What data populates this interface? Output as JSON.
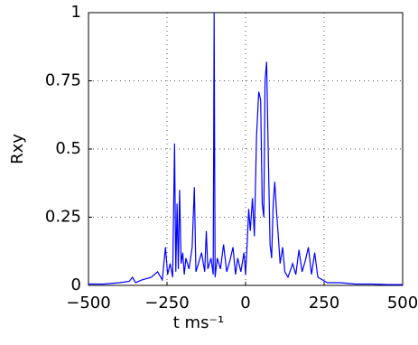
{
  "chart_data": {
    "type": "line",
    "xlabel": "t  ms⁻¹",
    "ylabel": "Rxy",
    "xlim": [
      -500,
      500
    ],
    "ylim": [
      0,
      1
    ],
    "xticks": [
      {
        "value": -500,
        "label": "−500"
      },
      {
        "value": -250,
        "label": "−250"
      },
      0,
      250,
      500
    ],
    "yticks": [
      0,
      0.25,
      0.5,
      0.75,
      1
    ],
    "grid": true,
    "series": [
      {
        "color": "#0000ff",
        "x": [
          -500,
          -450,
          -400,
          -370,
          -360,
          -350,
          -330,
          -300,
          -280,
          -265,
          -255,
          -248,
          -240,
          -232,
          -226,
          -222,
          -218,
          -214,
          -210,
          -205,
          -200,
          -195,
          -190,
          -180,
          -170,
          -163,
          -158,
          -150,
          -140,
          -130,
          -125,
          -120,
          -110,
          -103,
          -100,
          -97,
          -90,
          -80,
          -70,
          -60,
          -50,
          -40,
          -32,
          -25,
          -15,
          -5,
          0,
          5,
          10,
          15,
          22,
          28,
          35,
          42,
          48,
          53,
          58,
          62,
          67,
          72,
          78,
          83,
          88,
          93,
          98,
          103,
          110,
          118,
          125,
          135,
          150,
          160,
          170,
          180,
          190,
          200,
          210,
          220,
          230,
          245,
          260,
          300,
          350,
          400,
          450,
          500
        ],
        "values": [
          0.005,
          0.005,
          0.01,
          0.015,
          0.03,
          0.01,
          0.02,
          0.03,
          0.05,
          0.02,
          0.14,
          0.04,
          0.08,
          0.03,
          0.52,
          0.05,
          0.3,
          0.06,
          0.35,
          0.08,
          0.12,
          0.04,
          0.1,
          0.06,
          0.14,
          0.36,
          0.05,
          0.08,
          0.12,
          0.05,
          0.2,
          0.06,
          0.1,
          0.04,
          1.0,
          0.03,
          0.1,
          0.06,
          0.15,
          0.05,
          0.09,
          0.14,
          0.04,
          0.1,
          0.05,
          0.12,
          0.04,
          0.15,
          0.28,
          0.2,
          0.32,
          0.18,
          0.55,
          0.71,
          0.68,
          0.3,
          0.25,
          0.75,
          0.82,
          0.5,
          0.15,
          0.1,
          0.3,
          0.38,
          0.28,
          0.2,
          0.08,
          0.14,
          0.05,
          0.03,
          0.08,
          0.04,
          0.13,
          0.05,
          0.09,
          0.14,
          0.04,
          0.12,
          0.03,
          0.02,
          0.01,
          0.01,
          0.005,
          0.005,
          0.003,
          0.003
        ]
      }
    ]
  }
}
